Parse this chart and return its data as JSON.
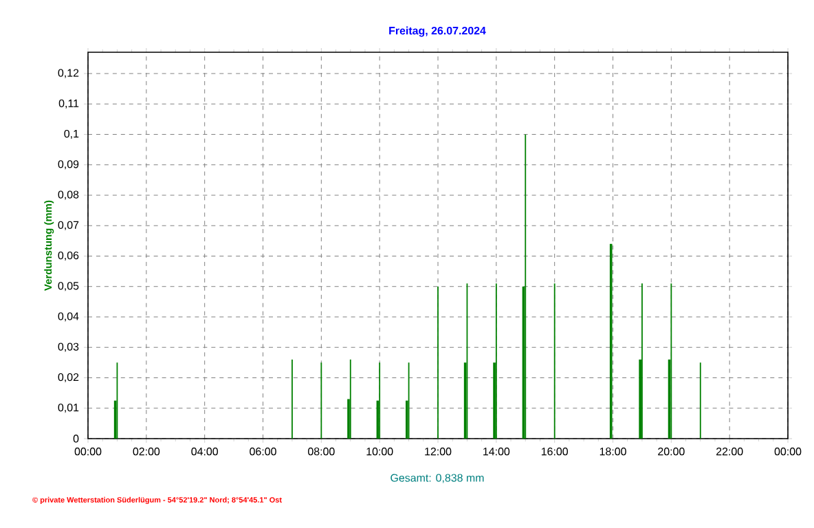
{
  "chart_data": {
    "type": "bar",
    "title": "Freitag, 26.07.2024",
    "ylabel": "Verdunstung  (mm)",
    "annotations": [
      "Gesamt: 0,838 mm",
      "© private Wetterstation Süderlügum - 54°52'19.2\" Nord; 8°54'45.1\" Ost"
    ],
    "x": [
      1,
      7,
      8,
      9,
      10,
      11,
      12,
      13,
      14,
      15,
      16,
      17,
      18,
      19,
      20,
      21
    ],
    "series": [
      {
        "color": "#008000",
        "values": [
          0.0125,
          null,
          null,
          0.013,
          0.0125,
          0.0125,
          null,
          0.025,
          0.025,
          0.05,
          null,
          null,
          0.064,
          0.026,
          0.026,
          null
        ]
      },
      {
        "color": "#008000",
        "values": [
          0.025,
          0.026,
          0.025,
          0.026,
          0.025,
          0.025,
          0.05,
          0.051,
          0.051,
          0.1,
          0.051,
          null,
          null,
          0.051,
          0.051,
          0.025
        ]
      }
    ],
    "xlim": [
      0,
      24
    ],
    "xticks": [
      {
        "value": 0,
        "label": "00:00"
      },
      {
        "value": 2,
        "label": "02:00"
      },
      {
        "value": 4,
        "label": "04:00"
      },
      {
        "value": 6,
        "label": "06:00"
      },
      {
        "value": 8,
        "label": "08:00"
      },
      {
        "value": 10,
        "label": "10:00"
      },
      {
        "value": 12,
        "label": "12:00"
      },
      {
        "value": 14,
        "label": "14:00"
      },
      {
        "value": 16,
        "label": "16:00"
      },
      {
        "value": 18,
        "label": "18:00"
      },
      {
        "value": 20,
        "label": "20:00"
      },
      {
        "value": 22,
        "label": "22:00"
      },
      {
        "value": 24,
        "label": "00:00"
      }
    ],
    "ylim": [
      0,
      0.127
    ],
    "yticks": [
      0,
      {
        "value": 0.01,
        "label": "0,01"
      },
      {
        "value": 0.02,
        "label": "0,02"
      },
      {
        "value": 0.03,
        "label": "0,03"
      },
      {
        "value": 0.04,
        "label": "0,04"
      },
      {
        "value": 0.05,
        "label": "0,05"
      },
      {
        "value": 0.06,
        "label": "0,06"
      },
      {
        "value": 0.07,
        "label": "0,07"
      },
      {
        "value": 0.08,
        "label": "0,08"
      },
      {
        "value": 0.09,
        "label": "0,09"
      },
      {
        "value": 0.1,
        "label": "0,1"
      },
      {
        "value": 0.11,
        "label": "0,11"
      },
      {
        "value": 0.12,
        "label": "0,12"
      }
    ],
    "grid": true
  }
}
